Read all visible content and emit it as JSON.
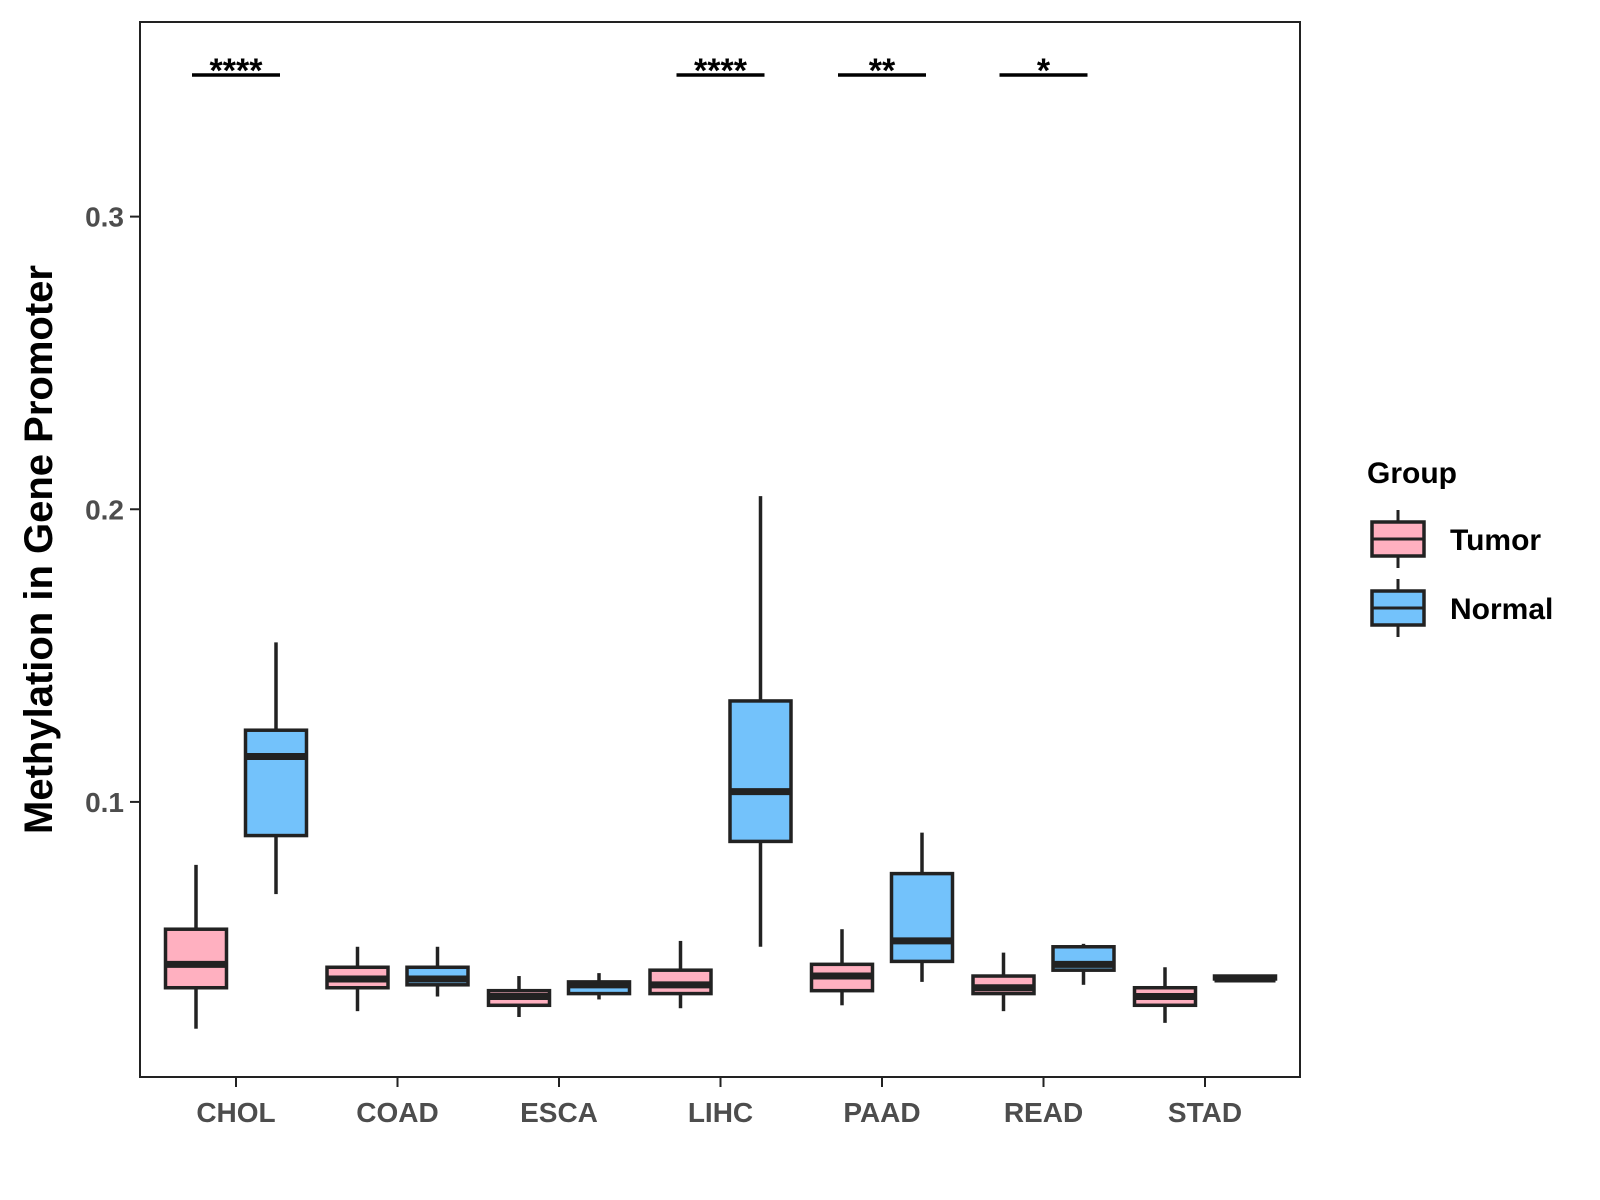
{
  "chart_data": {
    "type": "boxplot",
    "title": "",
    "xlabel": "",
    "ylabel": "Methylation in Gene Promoter",
    "ylim": [
      0.006,
      0.3665
    ],
    "y_ticks": [
      0.1,
      0.2,
      0.3
    ],
    "y_tick_labels": [
      "0.1",
      "0.2",
      "0.3"
    ],
    "categories": [
      "CHOL",
      "COAD",
      "ESCA",
      "LIHC",
      "PAAD",
      "READ",
      "STAD"
    ],
    "legend": {
      "title": "Group",
      "position": "right",
      "entries": [
        "Tumor",
        "Normal"
      ]
    },
    "colors": {
      "Tumor": "#FFB0C0",
      "Normal": "#73C2FB",
      "outline": "#222222",
      "frame": "#222222"
    },
    "series": [
      {
        "name": "Tumor",
        "boxes": [
          {
            "category": "CHOL",
            "whisker_low": 0.0225,
            "q1": 0.0365,
            "median": 0.0445,
            "q3": 0.0565,
            "whisker_high": 0.0785
          },
          {
            "category": "COAD",
            "whisker_low": 0.0285,
            "q1": 0.0365,
            "median": 0.0395,
            "q3": 0.0435,
            "whisker_high": 0.0505
          },
          {
            "category": "ESCA",
            "whisker_low": 0.0265,
            "q1": 0.0305,
            "median": 0.0335,
            "q3": 0.0355,
            "whisker_high": 0.0405
          },
          {
            "category": "LIHC",
            "whisker_low": 0.0295,
            "q1": 0.0345,
            "median": 0.0375,
            "q3": 0.0425,
            "whisker_high": 0.0525
          },
          {
            "category": "PAAD",
            "whisker_low": 0.0305,
            "q1": 0.0355,
            "median": 0.0405,
            "q3": 0.0445,
            "whisker_high": 0.0565
          },
          {
            "category": "READ",
            "whisker_low": 0.0285,
            "q1": 0.0345,
            "median": 0.0365,
            "q3": 0.0405,
            "whisker_high": 0.0485
          },
          {
            "category": "STAD",
            "whisker_low": 0.0245,
            "q1": 0.0305,
            "median": 0.0335,
            "q3": 0.0365,
            "whisker_high": 0.0435
          }
        ]
      },
      {
        "name": "Normal",
        "boxes": [
          {
            "category": "CHOL",
            "whisker_low": 0.0685,
            "q1": 0.0885,
            "median": 0.1155,
            "q3": 0.1245,
            "whisker_high": 0.1545
          },
          {
            "category": "COAD",
            "whisker_low": 0.0335,
            "q1": 0.0375,
            "median": 0.0395,
            "q3": 0.0435,
            "whisker_high": 0.0505
          },
          {
            "category": "ESCA",
            "whisker_low": 0.0325,
            "q1": 0.0345,
            "median": 0.0375,
            "q3": 0.0385,
            "whisker_high": 0.0415
          },
          {
            "category": "LIHC",
            "whisker_low": 0.0505,
            "q1": 0.0865,
            "median": 0.1035,
            "q3": 0.1345,
            "whisker_high": 0.2045
          },
          {
            "category": "PAAD",
            "whisker_low": 0.0385,
            "q1": 0.0455,
            "median": 0.0525,
            "q3": 0.0755,
            "whisker_high": 0.0895
          },
          {
            "category": "READ",
            "whisker_low": 0.0375,
            "q1": 0.0425,
            "median": 0.0445,
            "q3": 0.0505,
            "whisker_high": 0.0515
          },
          {
            "category": "STAD",
            "whisker_low": 0.0395,
            "q1": 0.0395,
            "median": 0.0395,
            "q3": 0.0405,
            "whisker_high": 0.0405
          }
        ]
      }
    ],
    "annotations": [
      {
        "category": "CHOL",
        "label": "****"
      },
      {
        "category": "LIHC",
        "label": "****"
      },
      {
        "category": "PAAD",
        "label": "**"
      },
      {
        "category": "READ",
        "label": "*"
      }
    ],
    "grid": false
  }
}
